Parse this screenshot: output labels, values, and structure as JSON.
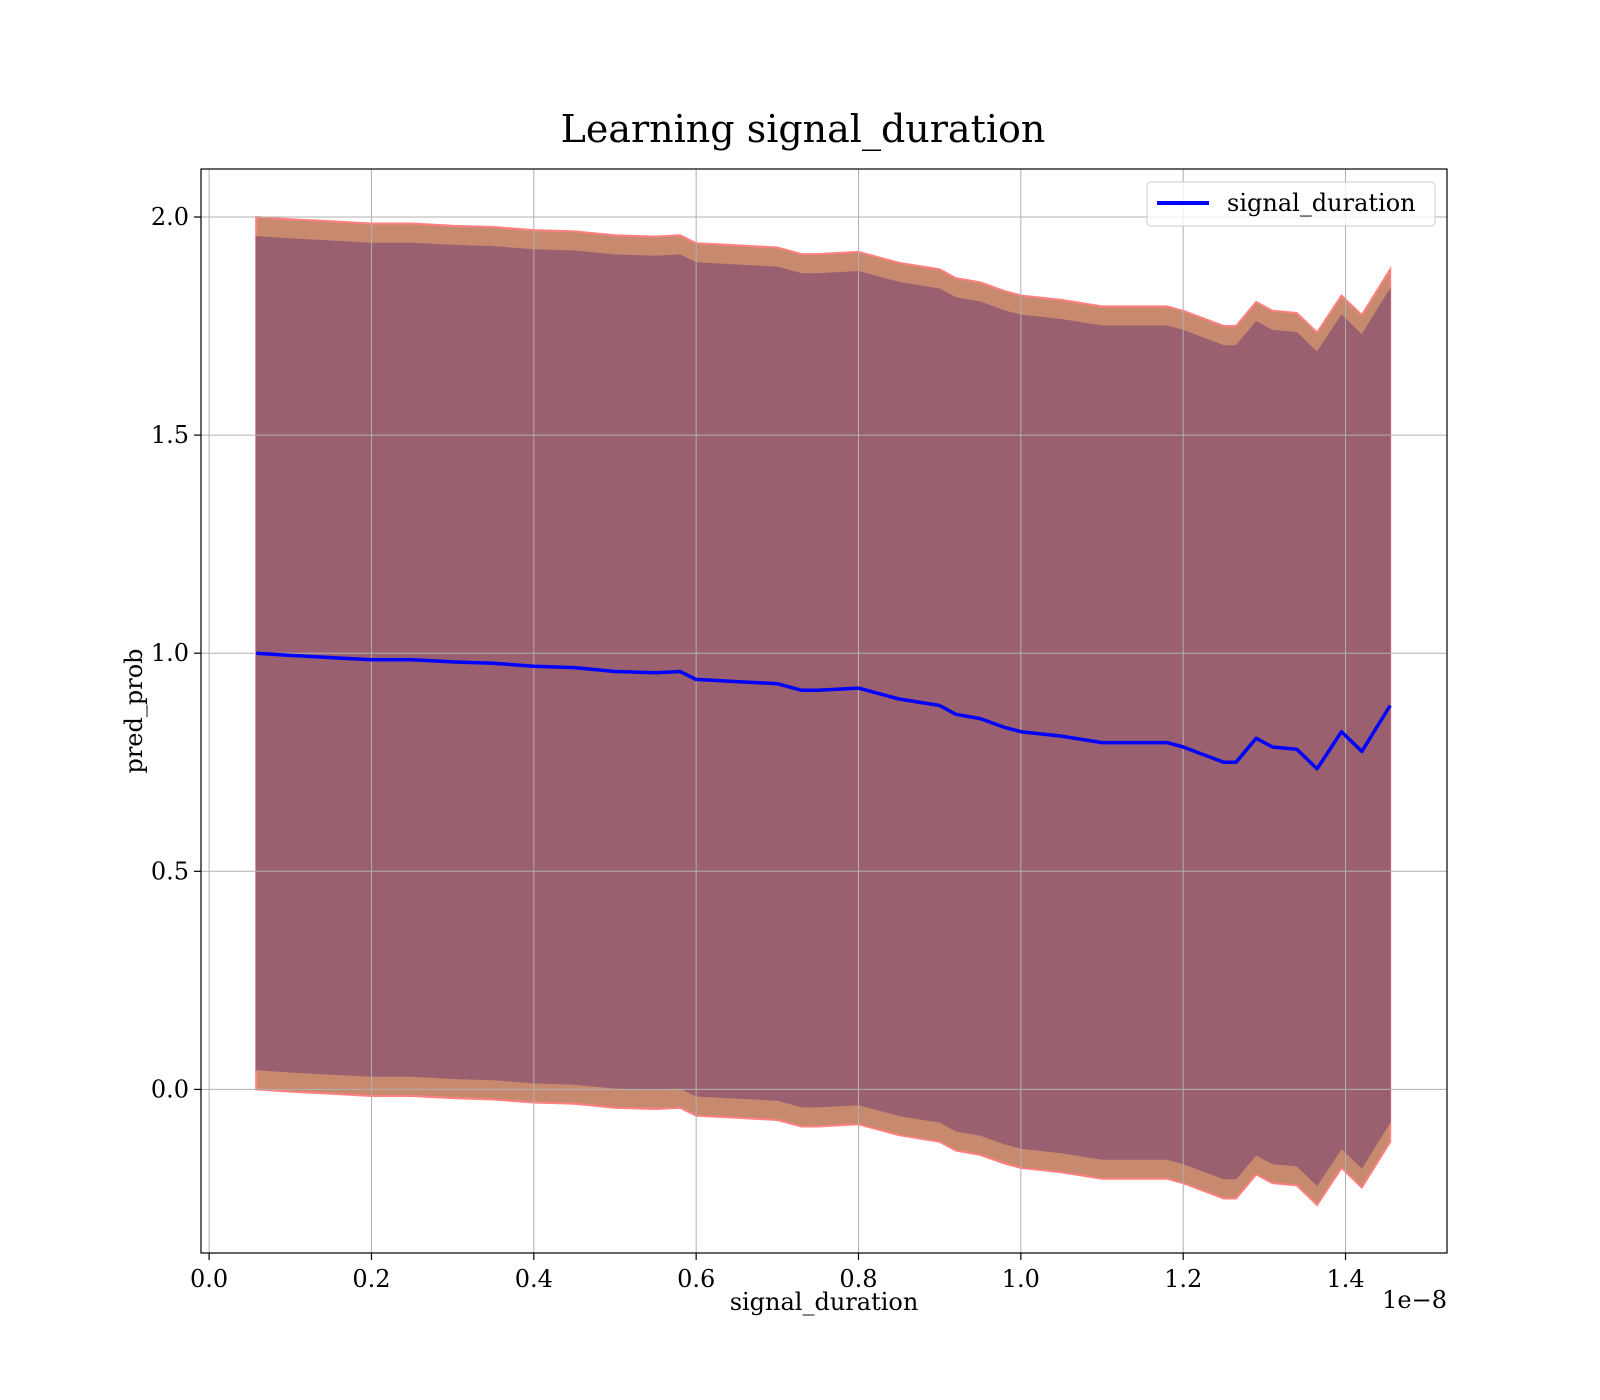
{
  "chart_data": {
    "type": "line",
    "title": "Learning signal_duration",
    "xlabel": "signal_duration",
    "ylabel": "pred_prob",
    "x_offset_label": "1e−8",
    "x_tick_labels": [
      "0.0",
      "0.2",
      "0.4",
      "0.6",
      "0.8",
      "1.0",
      "1.2",
      "1.4"
    ],
    "x_tick_values": [
      0.0,
      0.2,
      0.4,
      0.6,
      0.8,
      1.0,
      1.2,
      1.4
    ],
    "y_tick_labels": [
      "0.0",
      "0.5",
      "1.0",
      "1.5",
      "2.0"
    ],
    "y_tick_values": [
      0.0,
      0.5,
      1.0,
      1.5,
      2.0
    ],
    "xlim": [
      -0.01,
      1.525
    ],
    "ylim": [
      -0.375,
      2.11
    ],
    "grid": true,
    "legend_position": "top-right",
    "series": [
      {
        "name": "signal_duration",
        "color": "#0000ff",
        "x": [
          0.058,
          0.1,
          0.15,
          0.2,
          0.25,
          0.3,
          0.35,
          0.4,
          0.45,
          0.5,
          0.55,
          0.58,
          0.6,
          0.65,
          0.7,
          0.73,
          0.75,
          0.8,
          0.85,
          0.9,
          0.92,
          0.95,
          0.98,
          1.0,
          1.05,
          1.1,
          1.15,
          1.18,
          1.2,
          1.25,
          1.265,
          1.29,
          1.31,
          1.34,
          1.365,
          1.395,
          1.42,
          1.455
        ],
        "y": [
          1.0,
          0.995,
          0.99,
          0.985,
          0.985,
          0.98,
          0.977,
          0.97,
          0.967,
          0.958,
          0.955,
          0.958,
          0.94,
          0.935,
          0.93,
          0.915,
          0.915,
          0.92,
          0.895,
          0.88,
          0.86,
          0.85,
          0.83,
          0.82,
          0.81,
          0.795,
          0.795,
          0.795,
          0.785,
          0.75,
          0.75,
          0.805,
          0.785,
          0.78,
          0.735,
          0.82,
          0.775,
          0.88
        ]
      }
    ],
    "bands": [
      {
        "name": "outer band",
        "color": "#c88a6e",
        "edge_color": "#ff8080",
        "x": [
          0.058,
          0.1,
          0.15,
          0.2,
          0.25,
          0.3,
          0.35,
          0.4,
          0.45,
          0.5,
          0.55,
          0.58,
          0.6,
          0.65,
          0.7,
          0.73,
          0.75,
          0.8,
          0.85,
          0.9,
          0.92,
          0.95,
          0.98,
          1.0,
          1.05,
          1.1,
          1.15,
          1.18,
          1.2,
          1.25,
          1.265,
          1.29,
          1.31,
          1.34,
          1.365,
          1.395,
          1.42,
          1.455
        ],
        "upper": [
          2.0,
          1.995,
          1.99,
          1.985,
          1.985,
          1.98,
          1.977,
          1.97,
          1.967,
          1.958,
          1.955,
          1.958,
          1.94,
          1.935,
          1.93,
          1.915,
          1.915,
          1.92,
          1.895,
          1.88,
          1.86,
          1.85,
          1.83,
          1.82,
          1.81,
          1.795,
          1.795,
          1.795,
          1.785,
          1.75,
          1.75,
          1.805,
          1.785,
          1.78,
          1.735,
          1.82,
          1.775,
          1.88
        ],
        "lower": [
          0.0,
          -0.005,
          -0.01,
          -0.015,
          -0.015,
          -0.02,
          -0.023,
          -0.03,
          -0.033,
          -0.042,
          -0.045,
          -0.042,
          -0.06,
          -0.065,
          -0.07,
          -0.085,
          -0.085,
          -0.08,
          -0.105,
          -0.12,
          -0.14,
          -0.15,
          -0.17,
          -0.18,
          -0.19,
          -0.205,
          -0.205,
          -0.205,
          -0.215,
          -0.25,
          -0.25,
          -0.195,
          -0.215,
          -0.22,
          -0.265,
          -0.18,
          -0.225,
          -0.12
        ]
      },
      {
        "name": "inner band",
        "color": "#9a6070",
        "edge_color": "#9a6070",
        "x": [
          0.058,
          0.1,
          0.15,
          0.2,
          0.25,
          0.3,
          0.35,
          0.4,
          0.45,
          0.5,
          0.55,
          0.58,
          0.6,
          0.65,
          0.7,
          0.73,
          0.75,
          0.8,
          0.85,
          0.9,
          0.92,
          0.95,
          0.98,
          1.0,
          1.05,
          1.1,
          1.15,
          1.18,
          1.2,
          1.25,
          1.265,
          1.29,
          1.31,
          1.34,
          1.365,
          1.395,
          1.42,
          1.455
        ],
        "upper": [
          1.955,
          1.95,
          1.945,
          1.94,
          1.94,
          1.935,
          1.932,
          1.925,
          1.922,
          1.913,
          1.91,
          1.913,
          1.895,
          1.89,
          1.885,
          1.87,
          1.87,
          1.875,
          1.85,
          1.835,
          1.815,
          1.805,
          1.785,
          1.775,
          1.765,
          1.75,
          1.75,
          1.75,
          1.74,
          1.705,
          1.705,
          1.76,
          1.74,
          1.735,
          1.69,
          1.775,
          1.73,
          1.835
        ],
        "lower": [
          0.045,
          0.04,
          0.035,
          0.03,
          0.03,
          0.025,
          0.022,
          0.015,
          0.012,
          0.003,
          0.0,
          0.003,
          -0.015,
          -0.02,
          -0.025,
          -0.04,
          -0.04,
          -0.035,
          -0.06,
          -0.075,
          -0.095,
          -0.105,
          -0.125,
          -0.135,
          -0.145,
          -0.16,
          -0.16,
          -0.16,
          -0.17,
          -0.205,
          -0.205,
          -0.15,
          -0.17,
          -0.175,
          -0.22,
          -0.135,
          -0.18,
          -0.075
        ]
      }
    ]
  }
}
